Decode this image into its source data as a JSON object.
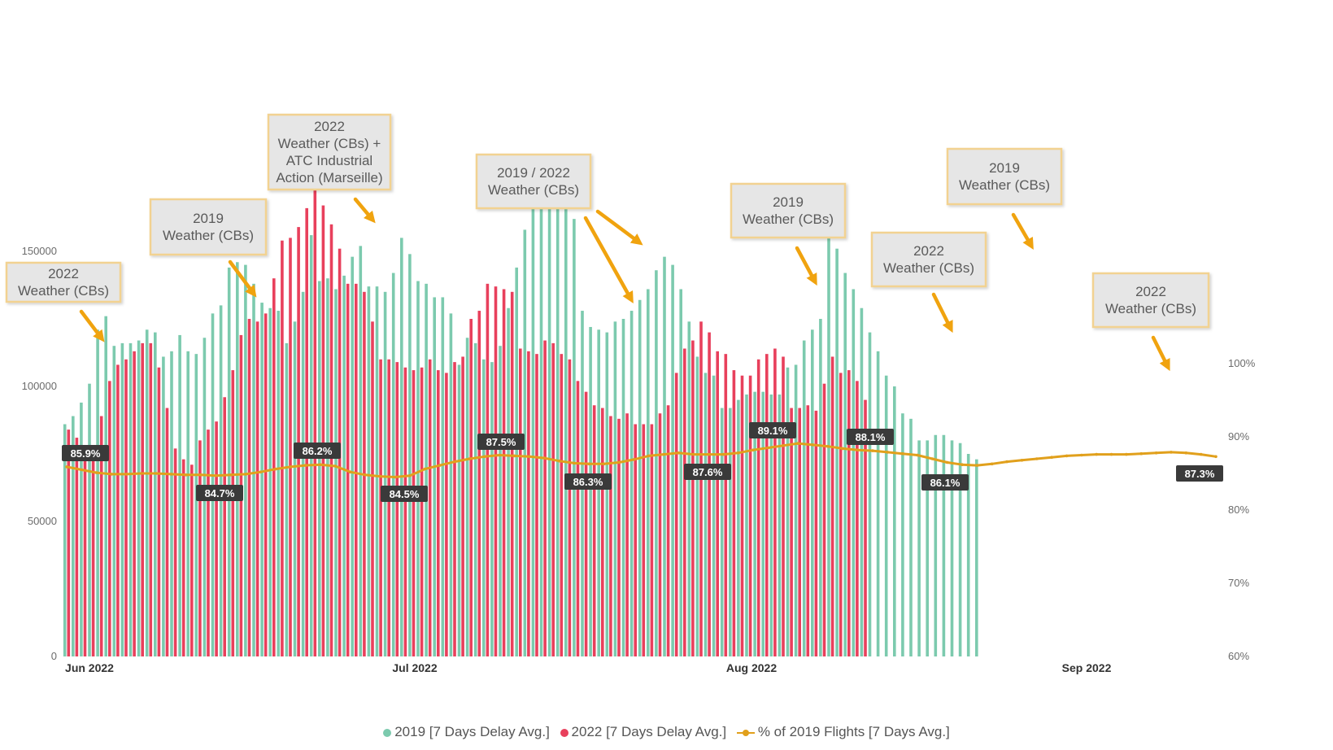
{
  "chart_data": {
    "type": "bar+line",
    "title": "",
    "x_tick_labels": [
      "Jun 2022",
      "Jul 2022",
      "Aug 2022",
      "Sep 2022"
    ],
    "y_left": {
      "ticks": [
        0,
        50000,
        100000,
        150000
      ],
      "ylim": [
        0,
        170000
      ]
    },
    "y_right": {
      "ticks": [
        "60%",
        "70%",
        "80%",
        "90%",
        "100%"
      ],
      "ylim": [
        60,
        106
      ]
    },
    "series": [
      {
        "name": "2019 [7 Days Delay Avg.]",
        "color": "#7ccaae",
        "values": [
          86000,
          89000,
          94000,
          101000,
          121000,
          126000,
          115000,
          116000,
          116000,
          117000,
          121000,
          120000,
          111000,
          113000,
          119000,
          113000,
          112000,
          118000,
          127000,
          130000,
          144000,
          146000,
          145000,
          138000,
          131000,
          129000,
          128000,
          116000,
          124000,
          135000,
          156000,
          139000,
          140000,
          136000,
          141000,
          148000,
          152000,
          137000,
          137000,
          135000,
          142000,
          155000,
          149000,
          139000,
          138000,
          133000,
          133000,
          127000,
          108000,
          118000,
          116000,
          110000,
          109000,
          115000,
          129000,
          144000,
          158000,
          176000,
          183000,
          180000,
          180000,
          176000,
          162000,
          128000,
          122000,
          121000,
          120000,
          124000,
          125000,
          128000,
          132000,
          136000,
          143000,
          148000,
          145000,
          136000,
          124000,
          111000,
          105000,
          104000,
          92000,
          92000,
          95000,
          97000,
          98000,
          98000,
          97000,
          97000,
          107000,
          108000,
          117000,
          121000,
          125000,
          155000,
          151000,
          142000,
          136000,
          129000,
          120000,
          113000,
          104000,
          100000,
          90000,
          88000,
          80000,
          80000,
          82000,
          82000,
          80000,
          79000,
          75000,
          73000
        ]
      },
      {
        "name": "2022 [7 Days Delay Avg.]",
        "color": "#e8405c",
        "values": [
          84000,
          81000,
          78000,
          76000,
          89000,
          102000,
          108000,
          110000,
          113000,
          116000,
          116000,
          107000,
          92000,
          77000,
          73000,
          71000,
          80000,
          84000,
          87000,
          96000,
          106000,
          119000,
          125000,
          124000,
          127000,
          140000,
          154000,
          155000,
          159000,
          166000,
          173000,
          167000,
          160000,
          151000,
          138000,
          138000,
          135000,
          124000,
          110000,
          110000,
          109000,
          107000,
          106000,
          107000,
          110000,
          106000,
          105000,
          109000,
          111000,
          125000,
          128000,
          138000,
          137000,
          136000,
          135000,
          114000,
          113000,
          112000,
          117000,
          116000,
          112000,
          110000,
          102000,
          98000,
          93000,
          92000,
          89000,
          88000,
          90000,
          86000,
          86000,
          86000,
          90000,
          93000,
          105000,
          114000,
          117000,
          124000,
          120000,
          113000,
          112000,
          106000,
          104000,
          104000,
          110000,
          112000,
          114000,
          111000,
          92000,
          92000,
          93000,
          91000,
          101000,
          111000,
          105000,
          106000,
          102000,
          95000
        ]
      },
      {
        "name": "% of 2019 Flights [7 Days Avg.]",
        "color": "#e1a01c",
        "values": [
          85.9,
          85.5,
          85.1,
          84.9,
          84.9,
          85.0,
          85.0,
          84.9,
          84.8,
          84.8,
          84.7,
          84.8,
          84.9,
          85.2,
          85.6,
          85.9,
          86.1,
          86.2,
          86.0,
          85.2,
          84.8,
          84.6,
          84.5,
          84.7,
          85.6,
          86.1,
          86.6,
          87.0,
          87.3,
          87.5,
          87.4,
          87.3,
          87.1,
          86.7,
          86.4,
          86.3,
          86.3,
          86.5,
          86.9,
          87.4,
          87.6,
          87.8,
          87.6,
          87.6,
          87.6,
          87.8,
          88.2,
          88.5,
          88.8,
          89.1,
          88.9,
          88.7,
          88.4,
          88.2,
          88.1,
          87.9,
          87.7,
          87.5,
          87.0,
          86.5,
          86.2,
          86.1,
          86.3,
          86.6,
          86.8,
          87.0,
          87.2,
          87.4,
          87.5,
          87.6,
          87.6,
          87.6,
          87.7,
          87.8,
          87.9,
          87.8,
          87.6,
          87.3
        ]
      }
    ],
    "point_labels": [
      {
        "text": "85.9%",
        "index": 0
      },
      {
        "text": "84.7%",
        "index": 10
      },
      {
        "text": "86.2%",
        "index": 17
      },
      {
        "text": "84.5%",
        "index": 22
      },
      {
        "text": "87.5%",
        "index": 29
      },
      {
        "text": "86.3%",
        "index": 35
      },
      {
        "text": "87.6%",
        "index": 40
      },
      {
        "text": "89.1%",
        "index": 49
      },
      {
        "text": "88.1%",
        "index": 54
      },
      {
        "text": "86.1%",
        "index": 61
      },
      {
        "text": "87.3%",
        "index": 77
      }
    ],
    "annotations": [
      {
        "lines": [
          "2022",
          "Weather (CBs)"
        ]
      },
      {
        "lines": [
          "2019",
          "Weather (CBs)"
        ]
      },
      {
        "lines": [
          "2022",
          "Weather (CBs) +",
          "ATC Industrial",
          "Action (Marseille)"
        ]
      },
      {
        "lines": [
          "2019 / 2022",
          "Weather (CBs)"
        ]
      },
      {
        "lines": [
          "2019",
          "Weather (CBs)"
        ]
      },
      {
        "lines": [
          "2022",
          "Weather (CBs)"
        ]
      },
      {
        "lines": [
          "2019",
          "Weather (CBs)"
        ]
      },
      {
        "lines": [
          "2022",
          "Weather (CBs)"
        ]
      }
    ]
  },
  "legend": {
    "series_2019": "2019 [7 Days Delay Avg.]",
    "series_2022": "2022 [7 Days Delay Avg.]",
    "series_pct": "% of 2019 Flights [7 Days Avg.]"
  },
  "colors": {
    "bar_2019": "#7ccaae",
    "bar_2022": "#e8405c",
    "line": "#e1a01c",
    "label_bg": "#3a3a3a",
    "annot_bg": "#e6e6e6",
    "annot_border": "#f2d291"
  }
}
